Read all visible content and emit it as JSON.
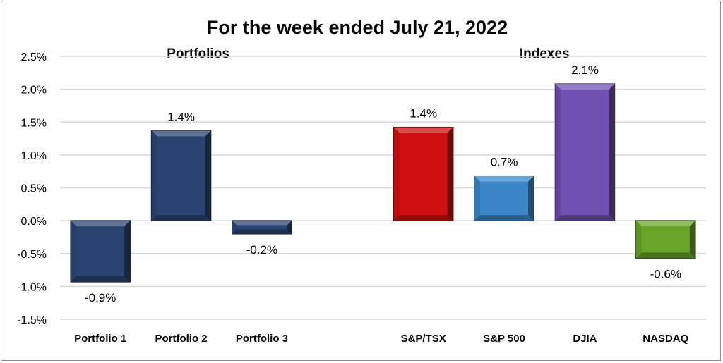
{
  "chart_data": {
    "type": "bar",
    "title": "For the week ended July 21, 2022",
    "group_labels": [
      {
        "text": "Portfolios",
        "categories": [
          "Portfolio 1",
          "Portfolio 2",
          "Portfolio 3"
        ]
      },
      {
        "text": "Indexes",
        "categories": [
          "S&P/TSX",
          "S&P 500",
          "DJIA",
          "NASDAQ"
        ]
      }
    ],
    "categories": [
      "Portfolio 1",
      "Portfolio 2",
      "Portfolio 3",
      "",
      "S&P/TSX",
      "S&P 500",
      "DJIA",
      "NASDAQ"
    ],
    "values": [
      -0.93,
      1.37,
      -0.2,
      null,
      1.42,
      0.68,
      2.08,
      -0.57
    ],
    "data_labels": [
      "-0.9%",
      "1.4%",
      "-0.2%",
      "",
      "1.4%",
      "0.7%",
      "2.1%",
      "-0.6%"
    ],
    "colors": [
      "#2a4472",
      "#2a4472",
      "#2a4472",
      null,
      "#d01010",
      "#3a86c8",
      "#7050b0",
      "#6aa52a"
    ],
    "ylim": [
      -1.5,
      2.5
    ],
    "yticks": [
      2.5,
      2.0,
      1.5,
      1.0,
      0.5,
      0.0,
      -0.5,
      -1.0,
      -1.5
    ],
    "ytick_labels": [
      "2.5%",
      "2.0%",
      "1.5%",
      "1.0%",
      "0.5%",
      "0.0%",
      "-0.5%",
      "-1.0%",
      "-1.5%"
    ],
    "xlabel": "",
    "ylabel": "",
    "grid": true,
    "legend": "none"
  }
}
